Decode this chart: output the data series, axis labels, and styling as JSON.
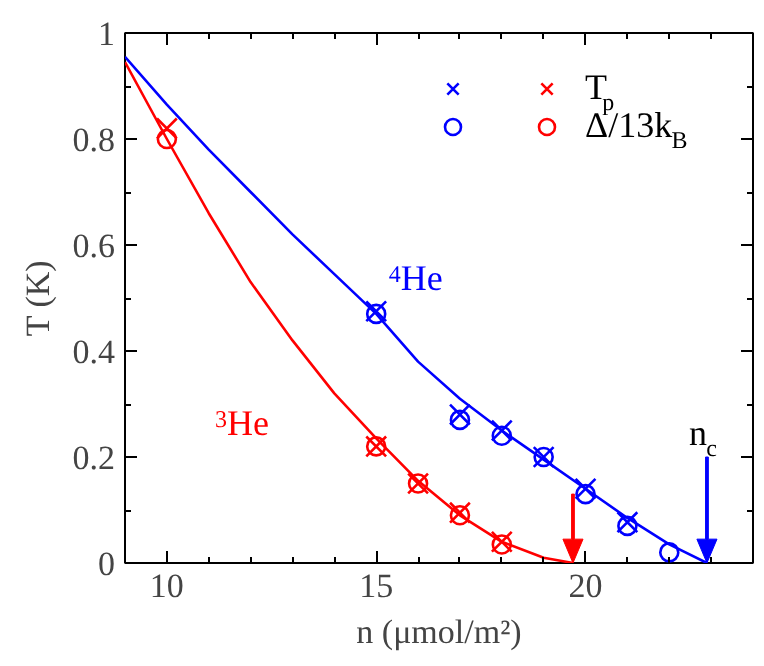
{
  "chart_data": {
    "type": "scatter",
    "xlabel": "n (μmol/m²)",
    "ylabel": "T (K)",
    "xlim": [
      9,
      24
    ],
    "ylim": [
      0,
      1
    ],
    "xticks": [
      10,
      15,
      20
    ],
    "yticks": [
      0,
      0.2,
      0.4,
      0.6,
      0.8,
      1
    ],
    "legend": "top right",
    "grid": false,
    "series": [
      {
        "color": "#0000ff",
        "marker": "cross",
        "x": [
          15,
          17,
          18,
          19,
          20,
          21
        ],
        "values": [
          0.475,
          0.28,
          0.25,
          0.2,
          0.14,
          0.077
        ]
      },
      {
        "name": "T$_{p}$",
        "color": "#ff0000",
        "marker": "cross",
        "x": [
          10,
          15,
          16,
          17,
          18
        ],
        "values": [
          0.82,
          0.22,
          0.15,
          0.095,
          0.04
        ]
      },
      {
        "color": "#0000ff",
        "marker": "circle",
        "x": [
          15,
          17,
          18,
          19,
          20,
          21,
          22
        ],
        "values": [
          0.47,
          0.27,
          0.24,
          0.2,
          0.13,
          0.07,
          0.02
        ]
      },
      {
        "name": "Δ/13k$_{B}$",
        "color": "#ff0000",
        "marker": "circle",
        "x": [
          10,
          15,
          16,
          17,
          18
        ],
        "values": [
          0.8,
          0.22,
          0.15,
          0.09,
          0.035
        ]
      },
      {
        "type": "line",
        "color": "#0000ff",
        "x": [
          9,
          10,
          11,
          12,
          13,
          14,
          15,
          16,
          17,
          18,
          19,
          20,
          21,
          22,
          22.9
        ],
        "values": [
          0.955,
          0.865,
          0.78,
          0.7,
          0.62,
          0.545,
          0.47,
          0.38,
          0.31,
          0.25,
          0.195,
          0.14,
          0.085,
          0.035,
          0
        ]
      },
      {
        "type": "line",
        "color": "#ff0000",
        "x": [
          9,
          10,
          11,
          12,
          13,
          14,
          15,
          16,
          17,
          18,
          19,
          19.7
        ],
        "values": [
          0.945,
          0.8,
          0.66,
          0.53,
          0.42,
          0.32,
          0.235,
          0.155,
          0.09,
          0.04,
          0.01,
          0
        ]
      }
    ],
    "ref_lines": [
      {
        "axis": "x",
        "value": 19.7,
        "color": "#ff0000"
      },
      {
        "axis": "x",
        "value": 22.9,
        "color": "#0000ff",
        "label": "n$_{c}$"
      }
    ],
    "annotations": [
      {
        "text": "$^{4}$He",
        "x": 15.3,
        "y": 0.5
      },
      "$^{3}$He"
    ]
  }
}
